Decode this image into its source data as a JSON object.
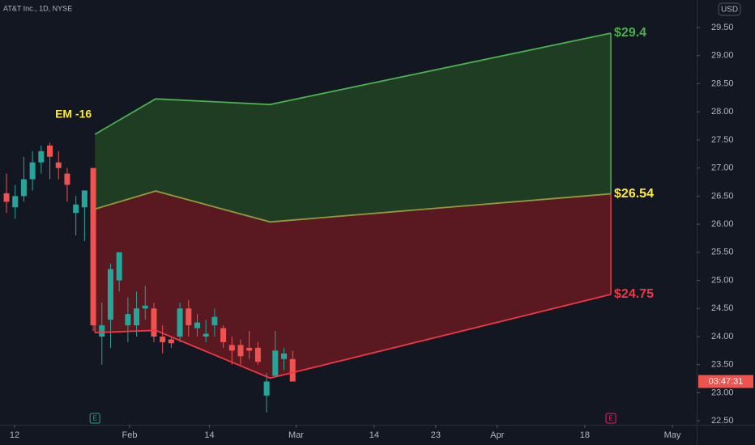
{
  "chart_data": {
    "type": "candlestick",
    "title": "AT&T Inc., 1D, NYSE",
    "currency": "USD",
    "price_tag": "03:47:31",
    "up_color": "#26a69a",
    "down_color": "#ef5350",
    "x": [
      0,
      1,
      2,
      3,
      4,
      5,
      6,
      7,
      8,
      9,
      10,
      11,
      12,
      13,
      14,
      15,
      16,
      17,
      18,
      19,
      20,
      21,
      22,
      23,
      24,
      25,
      26,
      27,
      28,
      29,
      30,
      31,
      32,
      33
    ],
    "open": [
      26.55,
      26.3,
      26.5,
      26.8,
      27.1,
      27.4,
      27.1,
      26.9,
      26.2,
      26.3,
      27.0,
      24.0,
      24.3,
      25.0,
      24.2,
      24.2,
      24.5,
      24.5,
      24.0,
      23.95,
      24.0,
      24.5,
      24.15,
      24.0,
      24.2,
      24.15,
      23.85,
      23.85,
      23.8,
      23.8,
      22.95,
      23.3,
      23.6,
      23.6
    ],
    "high": [
      26.9,
      26.7,
      27.2,
      27.3,
      27.4,
      27.45,
      27.3,
      27.0,
      26.5,
      26.6,
      27.0,
      24.6,
      25.3,
      25.5,
      24.7,
      24.8,
      24.9,
      24.6,
      24.2,
      24.0,
      24.6,
      24.65,
      24.4,
      24.3,
      24.5,
      24.2,
      24.0,
      23.95,
      24.1,
      23.9,
      23.35,
      24.1,
      23.8,
      23.75
    ],
    "low": [
      26.2,
      26.1,
      26.4,
      26.6,
      26.9,
      26.8,
      26.8,
      26.4,
      25.8,
      25.7,
      24.1,
      23.5,
      23.8,
      24.8,
      23.9,
      24.0,
      24.3,
      23.9,
      23.7,
      23.8,
      23.9,
      24.0,
      24.0,
      23.9,
      24.0,
      23.8,
      23.5,
      23.5,
      23.6,
      23.5,
      22.65,
      23.3,
      23.4,
      23.2
    ],
    "close": [
      26.4,
      26.5,
      26.8,
      27.1,
      27.3,
      27.2,
      27.0,
      26.7,
      26.35,
      26.6,
      24.2,
      24.2,
      25.2,
      25.5,
      24.4,
      24.5,
      24.55,
      24.0,
      23.9,
      23.88,
      24.5,
      24.2,
      24.25,
      24.05,
      24.35,
      23.9,
      23.75,
      23.65,
      23.75,
      23.55,
      23.2,
      23.75,
      23.7,
      23.2
    ],
    "bands": {
      "x": [
        10.2,
        17.2,
        30.4,
        69.7
      ],
      "series": [
        {
          "color": "#4caf50",
          "values": [
            27.6,
            28.23,
            28.13,
            29.4
          ],
          "value_labels": [
            null,
            null,
            null,
            "$29.4"
          ]
        },
        {
          "color": "#8f9a3c",
          "label_color": "#ffeb3b",
          "values": [
            26.27,
            26.59,
            26.04,
            26.54
          ],
          "value_labels": [
            null,
            null,
            null,
            "$26.54"
          ]
        },
        {
          "color": "#f23645",
          "values": [
            24.07,
            24.11,
            23.26,
            24.75
          ],
          "value_labels": [
            null,
            null,
            null,
            "$24.75"
          ]
        }
      ],
      "upper_fill": "#1e3d22",
      "lower_fill": "#5a1820"
    },
    "annotation": "EM -16",
    "events": [
      {
        "x": 10.2,
        "label": "E",
        "color": "#26a69a"
      },
      {
        "x": 69.7,
        "label": "E",
        "color": "#e91e63"
      }
    ],
    "xlim": [
      -0.75,
      79.6
    ],
    "xticks": [
      {
        "value": 0.93,
        "label": "12"
      },
      {
        "value": 14.2,
        "label": "Feb"
      },
      {
        "value": 23.4,
        "label": "14"
      },
      {
        "value": 33.4,
        "label": "Mar"
      },
      {
        "value": 42.4,
        "label": "14"
      },
      {
        "value": 49.5,
        "label": "23"
      },
      {
        "value": 56.6,
        "label": "Apr"
      },
      {
        "value": 66.7,
        "label": "18"
      },
      {
        "value": 76.8,
        "label": "May"
      }
    ],
    "ylim": [
      22.43,
      29.99
    ],
    "yticks": [
      {
        "value": 22.5,
        "label": "22.50"
      },
      {
        "value": 23,
        "label": "23.00"
      },
      {
        "value": 23.5,
        "label": "23.50"
      },
      {
        "value": 24,
        "label": "24.00"
      },
      {
        "value": 24.5,
        "label": "24.50"
      },
      {
        "value": 25,
        "label": "25.00"
      },
      {
        "value": 25.5,
        "label": "25.50"
      },
      {
        "value": 26,
        "label": "26.00"
      },
      {
        "value": 26.5,
        "label": "26.50"
      },
      {
        "value": 27,
        "label": "27.00"
      },
      {
        "value": 27.5,
        "label": "27.50"
      },
      {
        "value": 28,
        "label": "28.00"
      },
      {
        "value": 28.5,
        "label": "28.50"
      },
      {
        "value": 29,
        "label": "29.00"
      },
      {
        "value": 29.5,
        "label": "29.50"
      }
    ]
  }
}
